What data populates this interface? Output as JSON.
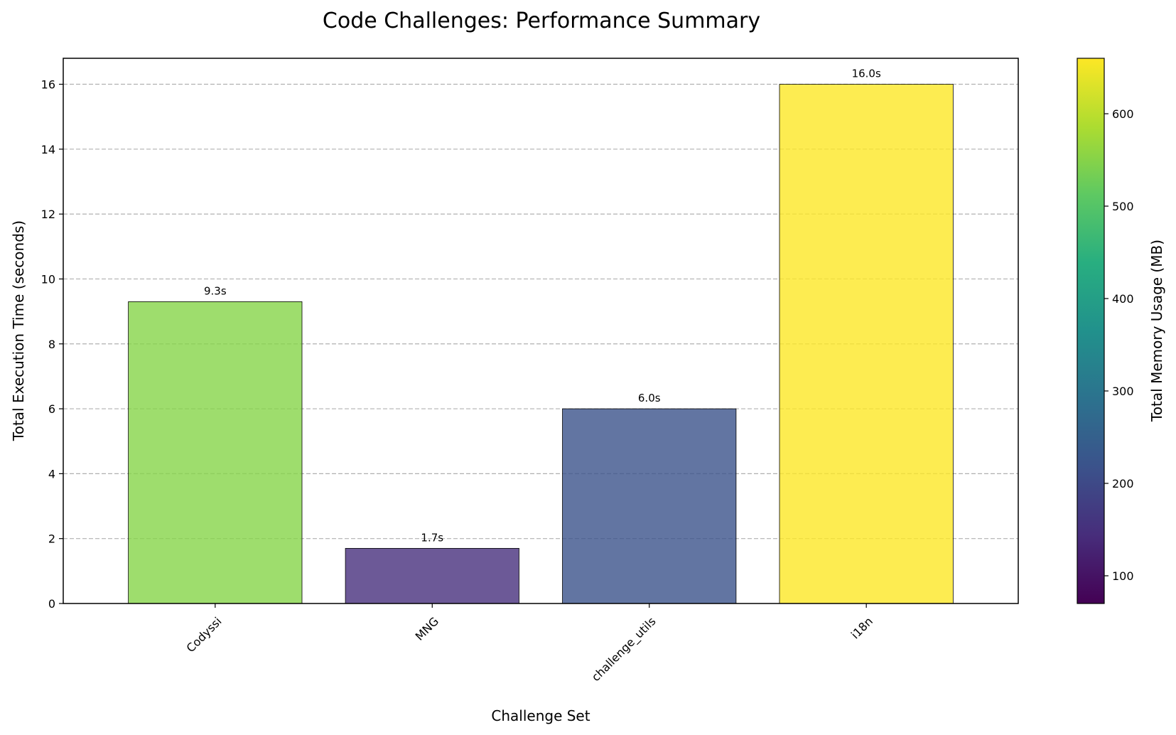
{
  "chart_data": {
    "type": "bar",
    "title": "Code Challenges: Performance Summary",
    "xlabel": "Challenge Set",
    "ylabel": "Total Execution Time (seconds)",
    "categories": [
      "Codyssi",
      "MNG",
      "challenge_utils",
      "i18n"
    ],
    "values": [
      9.3,
      1.7,
      6.0,
      16.0
    ],
    "value_labels": [
      "9.3s",
      "1.7s",
      "6.0s",
      "16.0s"
    ],
    "bar_colors": [
      "#86d549",
      "#472f7d",
      "#3b528b",
      "#fde725"
    ],
    "bar_opacity": 0.8,
    "ylim": [
      0,
      16.8
    ],
    "yticks": [
      0,
      2,
      4,
      6,
      8,
      10,
      12,
      14,
      16
    ],
    "ytick_labels": [
      "0",
      "2",
      "4",
      "6",
      "8",
      "10",
      "12",
      "14",
      "16"
    ],
    "grid": "y-dashed",
    "xtick_rotation": 45,
    "colorbar": {
      "label": "Total Memory Usage (MB)",
      "colormap": "viridis",
      "range": [
        70,
        660
      ],
      "ticks": [
        100,
        200,
        300,
        400,
        500,
        600
      ],
      "tick_labels": [
        "100",
        "200",
        "300",
        "400",
        "500",
        "600"
      ]
    }
  }
}
